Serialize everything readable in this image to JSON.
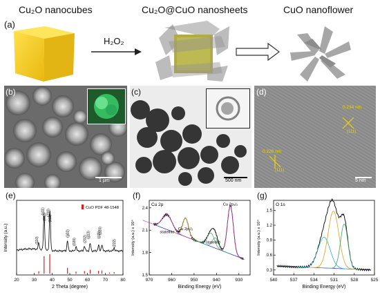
{
  "top": {
    "panel_label": "(a)",
    "stage1": "Cu₂O nanocubes",
    "stage2": "Cu₂O@CuO nanosheets",
    "stage3": "CuO nanoflower",
    "reagent": "H₂O₂"
  },
  "panels": {
    "b": {
      "label": "(b)",
      "scale": "1 µm"
    },
    "c": {
      "label": "(c)",
      "scale": "500 nm"
    },
    "d": {
      "label": "(d)",
      "scale": "5 nm",
      "spacing1": "0.234 nm",
      "plane1": "(111)",
      "spacing2": "0.226 nm",
      "plane2": "(111)"
    },
    "e": {
      "label": "(e)"
    },
    "f": {
      "label": "(f)"
    },
    "g": {
      "label": "(g)"
    }
  },
  "colors": {
    "cube": "#f2c81d",
    "sem_green": "#3bd46f",
    "ref_red": "#d62020"
  },
  "chart_data": [
    {
      "type": "line",
      "panel": "e",
      "xlabel": "2 Theta (degree)",
      "ylabel": "Intensity (a.u.)",
      "xlim": [
        20,
        80
      ],
      "x_ticks": [
        "20",
        "30",
        "40",
        "50",
        "60",
        "70",
        "80"
      ],
      "legend": "CuO  PDF 48-1548",
      "peak_labels": [
        {
          "x": 32.5,
          "text": "(110)"
        },
        {
          "x": 35.5,
          "text": "(002)"
        },
        {
          "x": 35.7,
          "text": "(ġ11)"
        },
        {
          "x": 38.7,
          "text": "(111)"
        },
        {
          "x": 38.9,
          "text": "(200)"
        },
        {
          "x": 48.7,
          "text": "(ġ02)"
        },
        {
          "x": 53.5,
          "text": "(020)"
        },
        {
          "x": 58.3,
          "text": "(202)"
        },
        {
          "x": 61.5,
          "text": "(ġ13)"
        },
        {
          "x": 66.2,
          "text": "(ġ11)"
        },
        {
          "x": 68.1,
          "text": "(220)"
        },
        {
          "x": 75.0,
          "text": "(222)"
        }
      ],
      "reference_peaks": [
        {
          "x": 32.5,
          "h": 0.12
        },
        {
          "x": 35.5,
          "h": 0.9
        },
        {
          "x": 38.7,
          "h": 1.0
        },
        {
          "x": 48.7,
          "h": 0.3
        },
        {
          "x": 53.5,
          "h": 0.1
        },
        {
          "x": 58.3,
          "h": 0.13
        },
        {
          "x": 61.5,
          "h": 0.2
        },
        {
          "x": 66.2,
          "h": 0.14
        },
        {
          "x": 68.1,
          "h": 0.16
        },
        {
          "x": 72.4,
          "h": 0.05
        },
        {
          "x": 75.0,
          "h": 0.07
        }
      ]
    },
    {
      "type": "line",
      "panel": "f",
      "title": "Cu 2p",
      "xlabel": "Binding Energy (eV)",
      "ylabel": "Intensity (a.u.) x 10⁴",
      "xlim": [
        970,
        925
      ],
      "ylim": [
        1.5,
        2.5
      ],
      "x_ticks": [
        "970",
        "960",
        "950",
        "940",
        "930"
      ],
      "y_ticks": [
        "1.5",
        "1.8",
        "2.1",
        "2.4"
      ],
      "annotations": [
        "statellite",
        "Cu 2p₁/₂",
        "statellite",
        "Cu 2p₃/₂"
      ]
    },
    {
      "type": "line",
      "panel": "g",
      "title": "O 1s",
      "xlabel": "Binding Energy (eV)",
      "ylabel": "Intensity (a.u.) x 10⁴",
      "xlim": [
        540,
        525
      ],
      "ylim": [
        0.2,
        1.7
      ],
      "x_ticks": [
        "540",
        "537",
        "534",
        "531",
        "528",
        "525"
      ],
      "y_ticks": [
        "0.3",
        "0.6",
        "0.9",
        "1.2",
        "1.5"
      ]
    }
  ]
}
